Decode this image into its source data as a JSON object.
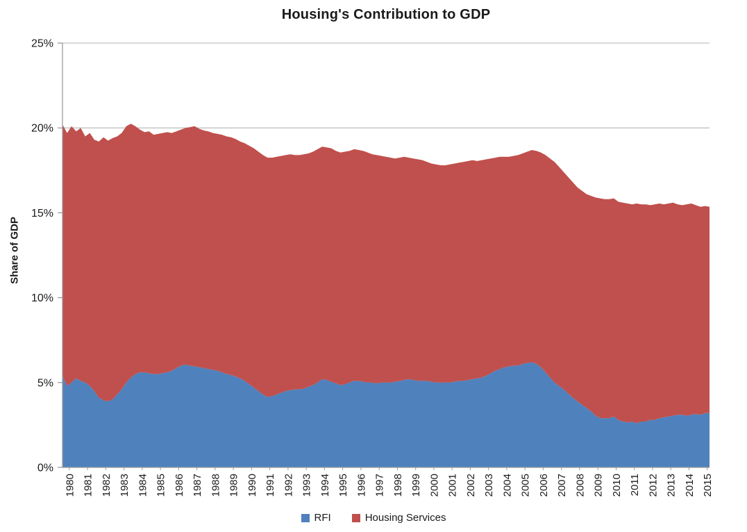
{
  "chart_data": {
    "type": "area",
    "stacked": true,
    "title": "Housing's Contribution to GDP",
    "ylabel": "Share of GDP",
    "xlabel": "",
    "ylim": [
      0,
      25
    ],
    "y_tick_labels": [
      "0%",
      "5%",
      "10%",
      "15%",
      "20%",
      "25%"
    ],
    "x_tick_labels": [
      "1980",
      "1981",
      "1982",
      "1983",
      "1984",
      "1985",
      "1986",
      "1987",
      "1988",
      "1989",
      "1990",
      "1991",
      "1992",
      "1993",
      "1994",
      "1995",
      "1996",
      "1997",
      "1998",
      "1999",
      "2000",
      "2001",
      "2002",
      "2003",
      "2004",
      "2005",
      "2006",
      "2007",
      "2008",
      "2009",
      "2010",
      "2011",
      "2012",
      "2013",
      "2014",
      "2015"
    ],
    "x_frequency": "quarterly",
    "grid": "horizontal",
    "legend_position": "bottom",
    "gridline_color": "#C0C0C0",
    "axis_color": "#9B9B9B",
    "text_color": "#1a1a1a",
    "series": [
      {
        "name": "RFI",
        "color": "#4F81BD",
        "values": [
          5.4,
          4.8,
          5.0,
          5.25,
          5.1,
          5.0,
          4.8,
          4.5,
          4.1,
          3.95,
          3.9,
          4.0,
          4.3,
          4.6,
          5.0,
          5.3,
          5.5,
          5.6,
          5.6,
          5.55,
          5.5,
          5.5,
          5.55,
          5.6,
          5.7,
          5.85,
          6.0,
          6.05,
          6.0,
          5.95,
          5.9,
          5.85,
          5.8,
          5.75,
          5.7,
          5.6,
          5.5,
          5.45,
          5.35,
          5.25,
          5.1,
          4.9,
          4.7,
          4.5,
          4.3,
          4.15,
          4.2,
          4.3,
          4.4,
          4.5,
          4.55,
          4.6,
          4.6,
          4.65,
          4.75,
          4.85,
          5.0,
          5.2,
          5.15,
          5.05,
          4.95,
          4.85,
          4.9,
          5.0,
          5.1,
          5.1,
          5.05,
          5.0,
          5.0,
          4.95,
          5.0,
          5.0,
          5.0,
          5.05,
          5.1,
          5.15,
          5.2,
          5.15,
          5.1,
          5.1,
          5.1,
          5.05,
          5.0,
          5.0,
          5.0,
          5.0,
          5.05,
          5.1,
          5.1,
          5.15,
          5.2,
          5.25,
          5.3,
          5.4,
          5.55,
          5.7,
          5.8,
          5.9,
          5.95,
          6.0,
          6.0,
          6.1,
          6.15,
          6.2,
          6.1,
          5.9,
          5.6,
          5.3,
          5.0,
          4.8,
          4.6,
          4.35,
          4.1,
          3.9,
          3.7,
          3.5,
          3.3,
          3.05,
          2.9,
          2.9,
          2.9,
          3.0,
          2.8,
          2.7,
          2.65,
          2.7,
          2.6,
          2.7,
          2.7,
          2.8,
          2.8,
          2.9,
          2.95,
          3.0,
          3.05,
          3.1,
          3.1,
          3.05,
          3.1,
          3.15,
          3.1,
          3.2,
          3.2
        ]
      },
      {
        "name": "Housing Services",
        "color": "#C0504D",
        "values": [
          14.8,
          14.9,
          15.1,
          14.55,
          14.9,
          14.5,
          14.9,
          14.8,
          15.1,
          15.5,
          15.35,
          15.4,
          15.2,
          15.1,
          15.1,
          14.95,
          14.6,
          14.3,
          14.15,
          14.25,
          14.1,
          14.15,
          14.15,
          14.15,
          14.0,
          13.95,
          13.9,
          13.95,
          14.05,
          14.15,
          14.05,
          14.0,
          14.0,
          13.95,
          13.95,
          14.0,
          14.0,
          14.0,
          14.0,
          13.95,
          14.0,
          14.05,
          14.1,
          14.1,
          14.1,
          14.1,
          14.05,
          14.0,
          13.95,
          13.9,
          13.9,
          13.8,
          13.8,
          13.8,
          13.75,
          13.75,
          13.75,
          13.7,
          13.7,
          13.75,
          13.7,
          13.7,
          13.7,
          13.65,
          13.65,
          13.6,
          13.6,
          13.55,
          13.45,
          13.45,
          13.35,
          13.3,
          13.25,
          13.15,
          13.15,
          13.15,
          13.05,
          13.05,
          13.05,
          13.0,
          12.9,
          12.85,
          12.85,
          12.8,
          12.8,
          12.85,
          12.85,
          12.85,
          12.9,
          12.9,
          12.9,
          12.8,
          12.8,
          12.75,
          12.65,
          12.55,
          12.5,
          12.4,
          12.35,
          12.35,
          12.4,
          12.4,
          12.45,
          12.5,
          12.55,
          12.65,
          12.8,
          12.9,
          13.0,
          12.9,
          12.8,
          12.75,
          12.7,
          12.6,
          12.6,
          12.6,
          12.7,
          12.85,
          12.95,
          12.9,
          12.9,
          12.85,
          12.85,
          12.9,
          12.9,
          12.8,
          12.95,
          12.8,
          12.8,
          12.65,
          12.7,
          12.65,
          12.55,
          12.55,
          12.55,
          12.4,
          12.35,
          12.45,
          12.45,
          12.3,
          12.25,
          12.2,
          12.15
        ]
      }
    ]
  }
}
